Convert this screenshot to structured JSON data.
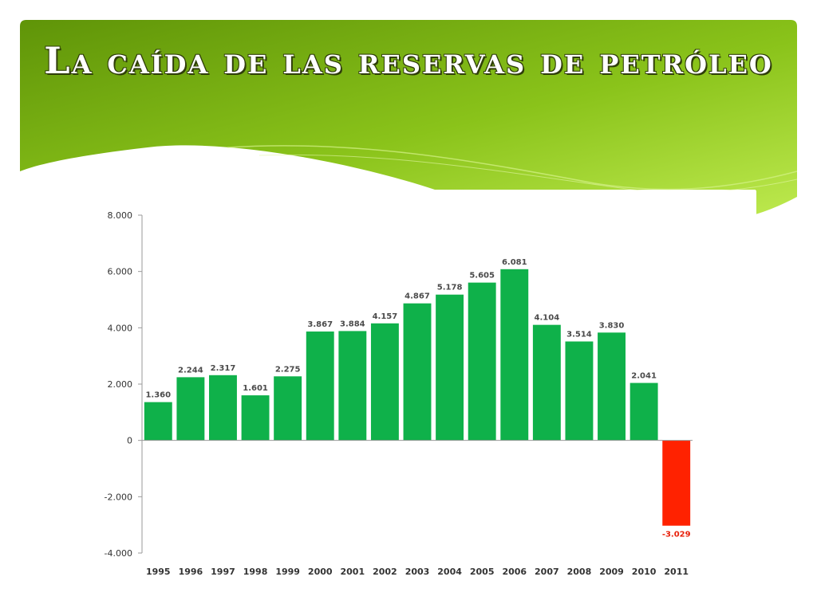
{
  "slide": {
    "title": "La caída de las reservas de petróleo",
    "header_gradient": [
      "#6a9a0a",
      "#8cc21c",
      "#b5e54a"
    ]
  },
  "chart_data": {
    "type": "bar",
    "categories": [
      "1995",
      "1996",
      "1997",
      "1998",
      "1999",
      "2000",
      "2001",
      "2002",
      "2003",
      "2004",
      "2005",
      "2006",
      "2007",
      "2008",
      "2009",
      "2010",
      "2011"
    ],
    "values": [
      1360,
      2244,
      2317,
      1601,
      2275,
      3867,
      3884,
      4157,
      4867,
      5178,
      5605,
      6081,
      4104,
      3514,
      3830,
      2041,
      -3029
    ],
    "data_labels": [
      "1.360",
      "2.244",
      "2.317",
      "1.601",
      "2.275",
      "3.867",
      "3.884",
      "4.157",
      "4.867",
      "5.178",
      "5.605",
      "6.081",
      "4.104",
      "3.514",
      "3.830",
      "2.041",
      "-3.029"
    ],
    "y_ticks": [
      8000,
      6000,
      4000,
      2000,
      0,
      -2000,
      -4000
    ],
    "y_tick_labels": [
      "8.000",
      "6.000",
      "4.000",
      "2.000",
      "0",
      "-2.000",
      "-4.000"
    ],
    "ylim": [
      -4000,
      8000
    ],
    "grid": false,
    "colors": {
      "positive": "#0fb14a",
      "negative": "#ff2200"
    },
    "title": "",
    "xlabel": "",
    "ylabel": ""
  }
}
